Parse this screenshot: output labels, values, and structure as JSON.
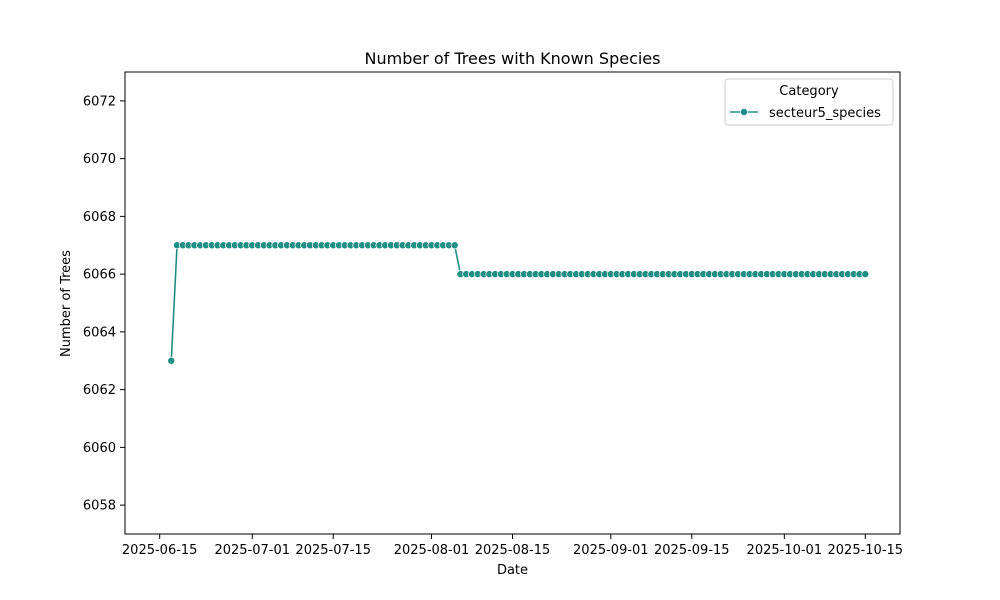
{
  "chart_data": {
    "type": "line",
    "title": "Number of Trees with Known Species",
    "xlabel": "Date",
    "ylabel": "Number of Trees",
    "x_range": [
      "2025-06-09",
      "2025-10-21"
    ],
    "ylim": [
      6057,
      6073
    ],
    "x_ticks": [
      "2025-06-15",
      "2025-07-01",
      "2025-07-15",
      "2025-08-01",
      "2025-08-15",
      "2025-09-01",
      "2025-09-15",
      "2025-10-01",
      "2025-10-15"
    ],
    "y_ticks": [
      6058,
      6060,
      6062,
      6064,
      6066,
      6068,
      6070,
      6072
    ],
    "grid": false,
    "legend": {
      "title": "Category",
      "position": "top-right"
    },
    "series": [
      {
        "name": "secteur5_species",
        "color": "#1f8f86",
        "segments": [
          {
            "start": "2025-06-17",
            "end": "2025-06-17",
            "value": 6063
          },
          {
            "start": "2025-06-18",
            "end": "2025-08-05",
            "value": 6067
          },
          {
            "start": "2025-08-06",
            "end": "2025-10-15",
            "value": 6066
          }
        ]
      }
    ]
  }
}
